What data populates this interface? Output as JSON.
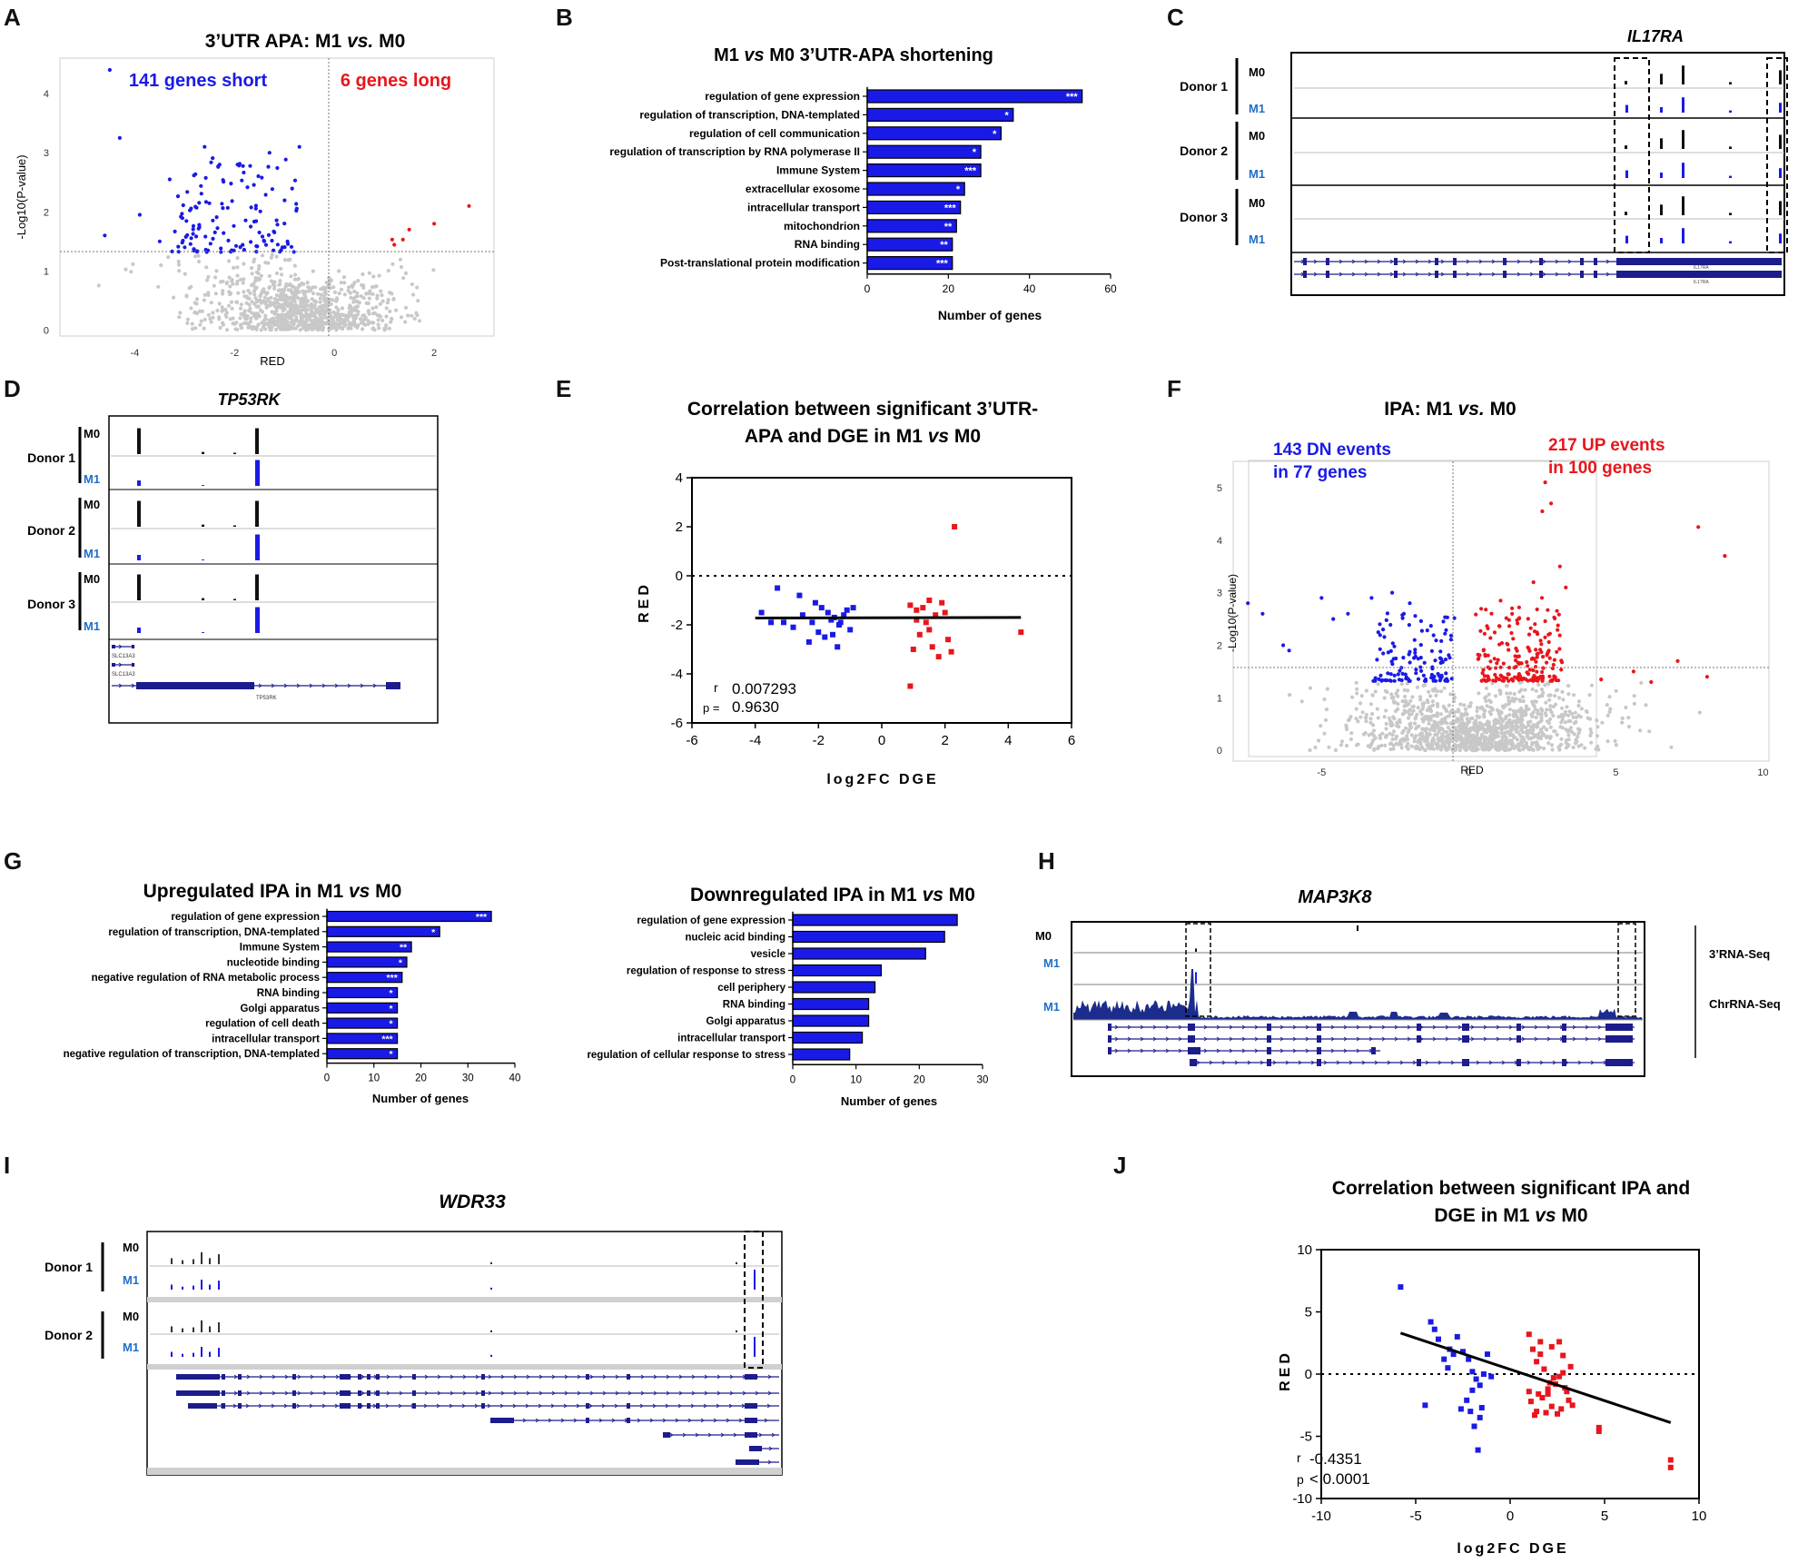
{
  "colors": {
    "blue": "#1a1ae6",
    "red": "#e8161c",
    "gray": "#c8c8c8",
    "navy": "#1c1c8c",
    "m1": "#1f6fc9"
  },
  "panels": {
    "A": {
      "letter": "A"
    },
    "B": {
      "letter": "B"
    },
    "C": {
      "letter": "C"
    },
    "D": {
      "letter": "D"
    },
    "E": {
      "letter": "E"
    },
    "F": {
      "letter": "F"
    },
    "G": {
      "letter": "G"
    },
    "H": {
      "letter": "H"
    },
    "I": {
      "letter": "I"
    },
    "J": {
      "letter": "J"
    }
  },
  "text": {
    "A_title_pre": "3’UTR APA: M1 ",
    "A_title_vs": "vs.",
    "A_title_post": " M0",
    "A_short": "141 genes short",
    "A_long": "6 genes long",
    "A_ylabel": "-Log10(P-value)",
    "A_xlabel": "RED",
    "B_title_pre": "M1 ",
    "B_title_vs": "vs",
    "B_title_post": " M0 3’UTR-APA shortening",
    "B_xlabel": "Number of genes",
    "C_gene": "IL17RA",
    "D_gene": "TP53RK",
    "donor1": "Donor 1",
    "donor2": "Donor 2",
    "donor3": "Donor 3",
    "m0": "M0",
    "m1": "M1",
    "slc13a3": "SLC13A3",
    "tp53rk_small": "TP53RK",
    "il17ra_small": "IL17RA",
    "E_title_l1": "Correlation between significant 3’UTR-",
    "E_title_l2_pre": "APA and DGE in M1 ",
    "E_title_l2_vs": "vs",
    "E_title_l2_post": " M0",
    "E_ylabel": "RED",
    "E_xlabel": "log2FC DGE",
    "E_r_label": "r",
    "E_r_value": "0.007293",
    "E_p_label": "p =",
    "E_p_value": "0.9630",
    "F_title_pre": "IPA: M1 ",
    "F_title_vs": "vs.",
    "F_title_post": " M0",
    "F_dn_l1": "143 DN events",
    "F_dn_l2": "in 77 genes",
    "F_up_l1": "217 UP events",
    "F_up_l2": "in 100 genes",
    "F_ylabel": "-Log10(P-value)",
    "F_xlabel": "RED",
    "G1_title_pre": "Upregulated IPA in M1 ",
    "G1_title_vs": "vs",
    "G1_title_post": " M0",
    "G2_title_pre": "Downregulated IPA in M1 ",
    "G2_title_vs": "vs",
    "G2_title_post": " M0",
    "G_xlabel": "Number of genes",
    "H_gene": "MAP3K8",
    "H_rna3": "3’RNA-Seq",
    "H_chr": "ChrRNA-Seq",
    "I_gene": "WDR33",
    "J_title_l1": "Correlation between significant IPA and",
    "J_title_l2_pre": "DGE in M1 ",
    "J_title_l2_vs": "vs",
    "J_title_l2_post": " M0",
    "J_ylabel": "RED",
    "J_xlabel": "log2FC DGE",
    "J_r_label": "r",
    "J_r_value": "-0.4351",
    "J_p_label": "p",
    "J_p_value": "< 0.0001"
  },
  "chart_data": [
    {
      "id": "A",
      "type": "scatter",
      "title": "3’UTR APA: M1 vs. M0",
      "xlabel": "RED",
      "ylabel": "-Log10(P-value)",
      "xlim": [
        -5.5,
        3.2
      ],
      "ylim": [
        -0.1,
        4.6
      ],
      "xticks": [
        "-4",
        "-2",
        "0",
        "2"
      ],
      "yticks": [
        "0",
        "1",
        "2",
        "3",
        "4"
      ],
      "annotations": [
        "141 genes short",
        "6 genes long"
      ],
      "threshold": 1.3
    },
    {
      "id": "B",
      "type": "bar",
      "title": "M1 vs M0 3’UTR-APA shortening",
      "xlabel": "Number of genes",
      "xlim": [
        0,
        60
      ],
      "xticks": [
        "0",
        "20",
        "40",
        "60"
      ],
      "categories": [
        "regulation of gene expression",
        "regulation of transcription, DNA-templated",
        "regulation of cell communication",
        "regulation of transcription by RNA polymerase II",
        "Immune System",
        "extracellular exosome",
        "intracellular transport",
        "mitochondrion",
        "RNA binding",
        "Post-translational protein modification"
      ],
      "values": [
        53,
        36,
        33,
        28,
        28,
        24,
        23,
        22,
        21,
        21
      ],
      "stars": [
        "***",
        "*",
        "*",
        "*",
        "***",
        "*",
        "***",
        "**",
        "**",
        "***"
      ]
    },
    {
      "id": "E",
      "type": "scatter",
      "title": "Correlation between significant 3’UTR-APA and DGE in M1 vs M0",
      "xlabel": "log2FC DGE",
      "ylabel": "RED",
      "xlim": [
        -6,
        6
      ],
      "ylim": [
        -6,
        4
      ],
      "xticks": [
        "-6",
        "-4",
        "-2",
        "0",
        "2",
        "4",
        "6"
      ],
      "yticks": [
        "-6",
        "-4",
        "-2",
        "0",
        "2",
        "4"
      ],
      "series": [
        {
          "name": "DN",
          "x": [
            -3.8,
            -3.3,
            -3.1,
            -2.8,
            -2.5,
            -2.2,
            -2.0,
            -1.9,
            -1.8,
            -1.6,
            -1.5,
            -1.4,
            -1.3,
            -1.2,
            -1.1,
            -1.0,
            -0.9,
            -2.6,
            -1.7,
            -1.35,
            -2.1,
            -1.55,
            -3.5,
            -2.3
          ],
          "y": [
            -1.5,
            -0.5,
            -1.9,
            -2.1,
            -1.6,
            -1.9,
            -2.3,
            -1.3,
            -2.5,
            -1.8,
            -1.7,
            -2.9,
            -1.9,
            -1.6,
            -1.4,
            -2.2,
            -1.3,
            -0.8,
            -1.5,
            -2.0,
            -1.1,
            -2.4,
            -1.9,
            -2.7
          ]
        },
        {
          "name": "UP",
          "x": [
            0.9,
            1.1,
            1.3,
            1.5,
            1.7,
            1.9,
            2.1,
            1.0,
            1.2,
            1.6,
            2.0,
            0.9,
            1.4,
            1.8,
            2.2,
            2.3,
            4.4,
            1.1,
            1.5
          ],
          "y": [
            -1.2,
            -1.8,
            -1.3,
            -2.2,
            -1.6,
            -1.1,
            -2.6,
            -3.0,
            -2.4,
            -2.9,
            -1.5,
            -4.5,
            -1.9,
            -3.3,
            -3.1,
            2.0,
            -2.3,
            -1.4,
            -1.0
          ]
        }
      ],
      "r": "0.007293",
      "p": "0.9630"
    },
    {
      "id": "F",
      "type": "scatter",
      "title": "IPA: M1 vs. M0",
      "xlabel": "RED",
      "ylabel": "-Log10(P-value)",
      "xlim": [
        -8,
        10.2
      ],
      "ylim": [
        -0.1,
        5.5
      ],
      "xticks": [
        "-5",
        "0",
        "5",
        "10"
      ],
      "yticks": [
        "0",
        "1",
        "2",
        "3",
        "4",
        "5"
      ],
      "annotations": [
        "143 DN events in 77 genes",
        "217 UP events in 100 genes"
      ],
      "threshold": 1.3
    },
    {
      "id": "G1",
      "type": "bar",
      "title": "Upregulated IPA in M1 vs M0",
      "xlabel": "Number of genes",
      "xlim": [
        0,
        40
      ],
      "xticks": [
        "0",
        "10",
        "20",
        "30",
        "40"
      ],
      "categories": [
        "regulation of gene expression",
        "regulation of transcription, DNA-templated",
        "Immune System",
        "nucleotide binding",
        "negative regulation of RNA metabolic process",
        "RNA binding",
        "Golgi apparatus",
        "regulation of cell death",
        "intracellular transport",
        "negative regulation of transcription, DNA-templated"
      ],
      "values": [
        35,
        24,
        18,
        17,
        16,
        15,
        15,
        15,
        15,
        15
      ],
      "stars": [
        "***",
        "*",
        "**",
        "*",
        "***",
        "*",
        "*",
        "*",
        "***",
        "*"
      ]
    },
    {
      "id": "G2",
      "type": "bar",
      "title": "Downregulated IPA in M1 vs M0",
      "xlabel": "Number of genes",
      "xlim": [
        0,
        30
      ],
      "xticks": [
        "0",
        "10",
        "20",
        "30"
      ],
      "categories": [
        "regulation of gene expression",
        "nucleic acid binding",
        "vesicle",
        "regulation of response to stress",
        "cell periphery",
        "RNA binding",
        "Golgi apparatus",
        "intracellular transport",
        "regulation of cellular response to stress"
      ],
      "values": [
        26,
        24,
        21,
        14,
        13,
        12,
        12,
        11,
        9
      ]
    },
    {
      "id": "J",
      "type": "scatter",
      "title": "Correlation between significant IPA and DGE in M1 vs M0",
      "xlabel": "log2FC DGE",
      "ylabel": "RED",
      "xlim": [
        -10,
        10
      ],
      "ylim": [
        -10,
        10
      ],
      "xticks": [
        "-10",
        "-5",
        "0",
        "5",
        "10"
      ],
      "yticks": [
        "-10",
        "-5",
        "0",
        "5",
        "10"
      ],
      "series": [
        {
          "name": "DN",
          "x": [
            -5.8,
            -4.2,
            -4.0,
            -3.8,
            -3.5,
            -3.2,
            -3.0,
            -2.8,
            -2.5,
            -2.2,
            -2.0,
            -1.8,
            -1.6,
            -1.4,
            -1.2,
            -1.0,
            -2.1,
            -1.9,
            -2.6,
            -1.7,
            -2.3,
            -1.5,
            -4.5,
            -3.3,
            -2.0,
            -1.6
          ],
          "y": [
            7.0,
            4.2,
            3.6,
            2.8,
            1.2,
            2.0,
            1.6,
            3.0,
            1.8,
            1.2,
            0.2,
            -0.4,
            -0.9,
            0.0,
            1.6,
            -0.2,
            -3.0,
            -4.2,
            -2.8,
            -6.1,
            -2.1,
            -2.7,
            -2.5,
            0.5,
            -1.3,
            -3.5
          ],
          "note": "approximate"
        },
        {
          "name": "UP",
          "x": [
            1.0,
            1.2,
            1.4,
            1.6,
            1.8,
            2.0,
            2.2,
            2.4,
            2.6,
            2.8,
            3.0,
            3.2,
            1.1,
            1.5,
            1.9,
            2.3,
            2.7,
            3.1,
            1.3,
            1.7,
            2.1,
            2.5,
            2.9,
            3.3,
            1.0,
            1.6,
            2.2,
            2.8,
            4.7,
            4.7,
            8.5,
            8.5,
            1.4,
            2.0,
            2.6
          ],
          "y": [
            3.2,
            2.0,
            1.0,
            2.6,
            0.4,
            -1.2,
            2.2,
            -0.8,
            2.6,
            1.5,
            -1.4,
            0.6,
            -2.2,
            -1.6,
            -3.1,
            -0.3,
            -2.8,
            -2.1,
            -3.3,
            -1.9,
            -0.7,
            -3.2,
            -1.1,
            -2.5,
            -1.4,
            1.6,
            -2.6,
            0.1,
            -4.6,
            -4.3,
            -7.5,
            -6.9,
            -3.0,
            -1.6,
            -0.2
          ]
        }
      ],
      "fit": [
        [
          -5.8,
          3.3
        ],
        [
          8.5,
          -3.9
        ]
      ],
      "r": "-0.4351",
      "p": "< 0.0001"
    }
  ]
}
